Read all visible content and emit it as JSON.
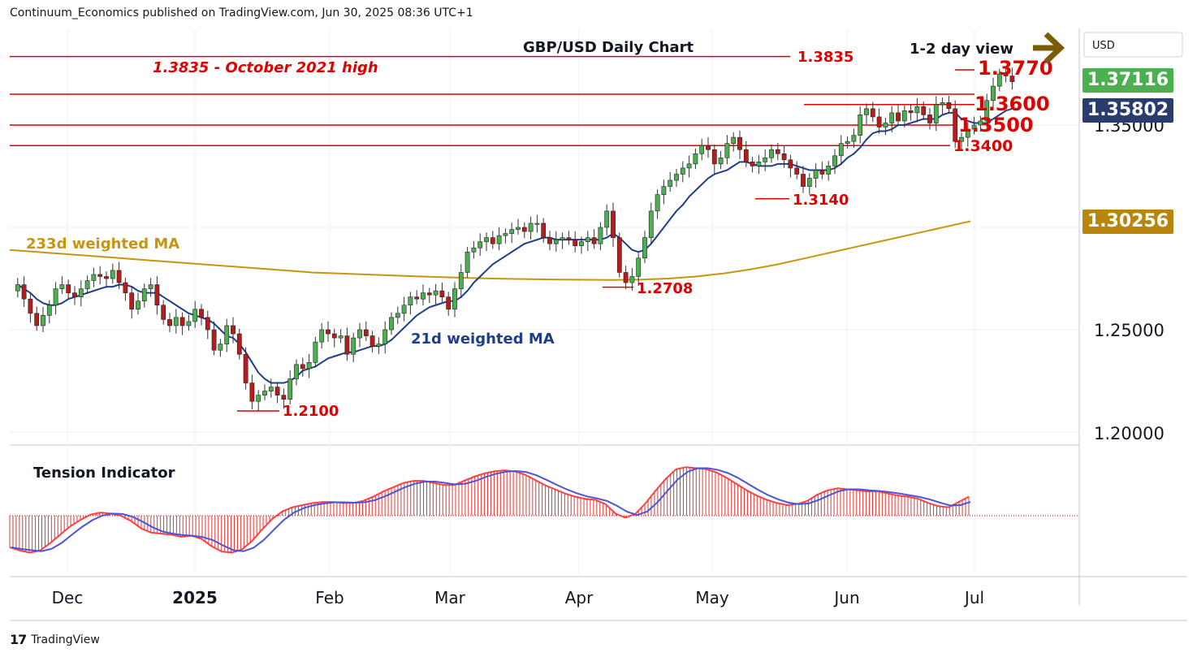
{
  "header": {
    "publisher_line": "Continuum_Economics published on TradingView.com, Jun 30, 2025 08:36 UTC+1"
  },
  "footer": {
    "brand": "TradingView"
  },
  "colors": {
    "bull": "#4caf50",
    "bear": "#b71c1c",
    "level": "#e00000",
    "ma21": "#1f3e8a",
    "ma233": "#c8950f",
    "annotation_red": "#e00000",
    "arrow": "#7a5c0a",
    "badge_green": "#4caf50",
    "badge_navy": "#2a3b6e",
    "badge_gold": "#b8860b"
  },
  "chart_data": {
    "type": "candlestick",
    "title": "GBP/USD Daily Chart",
    "subtitle": "1-2 day view",
    "currency": "USD",
    "y_ticks": [
      "1.35000",
      "1.25000",
      "1.20000"
    ],
    "x_ticks": [
      "Dec",
      "2025",
      "Feb",
      "Mar",
      "Apr",
      "May",
      "Jun",
      "Jul"
    ],
    "price_badges": [
      {
        "label": "1.37116",
        "kind": "last",
        "value": 1.37116
      },
      {
        "label": "1.35802",
        "kind": "ma21",
        "value": 1.35802
      },
      {
        "label": "1.30256",
        "kind": "ma233",
        "value": 1.30256
      }
    ],
    "levels": [
      {
        "value": 1.3835,
        "label": "1.3835",
        "note": "1.3835 - October 2021 high"
      },
      {
        "value": 1.377,
        "label": "1.3770"
      },
      {
        "value": 1.36,
        "label": "1.3600"
      },
      {
        "value": 1.35,
        "label": "1.3500"
      },
      {
        "value": 1.34,
        "label": "1.3400"
      }
    ],
    "swing_labels": [
      {
        "value": 1.314,
        "label": "1.3140"
      },
      {
        "value": 1.2708,
        "label": "1.2708"
      },
      {
        "value": 1.21,
        "label": "1.2100"
      }
    ],
    "ma_labels": {
      "ma233": "233d weighted MA",
      "ma21": "21d weighted MA"
    },
    "indicator": {
      "name": "Tension Indicator"
    },
    "price_path": [
      1.269,
      1.272,
      1.265,
      1.258,
      1.252,
      1.257,
      1.262,
      1.27,
      1.272,
      1.268,
      1.266,
      1.27,
      1.274,
      1.277,
      1.276,
      1.275,
      1.279,
      1.273,
      1.268,
      1.26,
      1.264,
      1.27,
      1.272,
      1.262,
      1.255,
      1.252,
      1.256,
      1.252,
      1.254,
      1.26,
      1.256,
      1.25,
      1.24,
      1.243,
      1.252,
      1.248,
      1.238,
      1.224,
      1.215,
      1.218,
      1.22,
      1.222,
      1.218,
      1.216,
      1.226,
      1.233,
      1.231,
      1.234,
      1.244,
      1.25,
      1.248,
      1.246,
      1.247,
      1.238,
      1.246,
      1.25,
      1.247,
      1.242,
      1.243,
      1.25,
      1.256,
      1.258,
      1.262,
      1.266,
      1.265,
      1.268,
      1.267,
      1.269,
      1.266,
      1.26,
      1.27,
      1.278,
      1.288,
      1.29,
      1.293,
      1.295,
      1.292,
      1.296,
      1.297,
      1.299,
      1.3,
      1.298,
      1.302,
      1.302,
      1.295,
      1.292,
      1.294,
      1.295,
      1.294,
      1.291,
      1.293,
      1.295,
      1.292,
      1.3,
      1.308,
      1.295,
      1.278,
      1.273,
      1.276,
      1.285,
      1.295,
      1.308,
      1.316,
      1.32,
      1.323,
      1.326,
      1.329,
      1.331,
      1.336,
      1.34,
      1.338,
      1.331,
      1.334,
      1.341,
      1.344,
      1.338,
      1.332,
      1.33,
      1.332,
      1.334,
      1.338,
      1.336,
      1.333,
      1.329,
      1.326,
      1.32,
      1.324,
      1.328,
      1.326,
      1.33,
      1.335,
      1.341,
      1.342,
      1.345,
      1.355,
      1.358,
      1.354,
      1.349,
      1.351,
      1.356,
      1.352,
      1.357,
      1.356,
      1.359,
      1.355,
      1.351,
      1.36,
      1.361,
      1.358,
      1.342,
      1.344,
      1.348,
      1.35,
      1.352,
      1.362,
      1.369,
      1.375,
      1.374,
      1.3712
    ],
    "ma21_path": [
      1.272,
      1.27,
      1.268,
      1.265,
      1.263,
      1.262,
      1.262,
      1.263,
      1.265,
      1.266,
      1.267,
      1.268,
      1.269,
      1.27,
      1.271,
      1.271,
      1.272,
      1.272,
      1.271,
      1.269,
      1.268,
      1.268,
      1.268,
      1.266,
      1.264,
      1.262,
      1.26,
      1.258,
      1.257,
      1.256,
      1.255,
      1.253,
      1.25,
      1.247,
      1.246,
      1.243,
      1.239,
      1.234,
      1.229,
      1.226,
      1.224,
      1.224,
      1.224,
      1.225,
      1.227,
      1.23,
      1.231,
      1.232,
      1.234,
      1.236,
      1.237,
      1.238,
      1.239,
      1.239,
      1.24,
      1.241,
      1.242,
      1.242,
      1.243,
      1.245,
      1.248,
      1.251,
      1.254,
      1.257,
      1.259,
      1.261,
      1.262,
      1.263,
      1.264,
      1.264,
      1.266,
      1.269,
      1.273,
      1.276,
      1.279,
      1.282,
      1.284,
      1.286,
      1.288,
      1.29,
      1.292,
      1.293,
      1.294,
      1.295,
      1.295,
      1.294,
      1.294,
      1.294,
      1.294,
      1.294,
      1.294,
      1.294,
      1.294,
      1.295,
      1.297,
      1.295,
      1.292,
      1.289,
      1.288,
      1.289,
      1.292,
      1.296,
      1.3,
      1.304,
      1.308,
      1.311,
      1.315,
      1.318,
      1.321,
      1.324,
      1.326,
      1.327,
      1.328,
      1.33,
      1.332,
      1.332,
      1.331,
      1.33,
      1.33,
      1.33,
      1.331,
      1.331,
      1.331,
      1.33,
      1.329,
      1.328,
      1.328,
      1.328,
      1.328,
      1.329,
      1.331,
      1.334,
      1.336,
      1.339,
      1.343,
      1.346,
      1.347,
      1.347,
      1.348,
      1.35,
      1.35,
      1.351,
      1.352,
      1.353,
      1.353,
      1.353,
      1.355,
      1.356,
      1.356,
      1.353,
      1.352,
      1.351,
      1.351,
      1.351,
      1.353,
      1.355,
      1.357,
      1.358,
      1.358
    ],
    "ma233_path": [
      1.289,
      1.288,
      1.287,
      1.286,
      1.285,
      1.284,
      1.283,
      1.282,
      1.281,
      1.28,
      1.279,
      1.278,
      1.2775,
      1.277,
      1.2765,
      1.276,
      1.2756,
      1.2752,
      1.2749,
      1.2747,
      1.2745,
      1.2744,
      1.2743,
      1.2745,
      1.275,
      1.276,
      1.2775,
      1.2795,
      1.282,
      1.285,
      1.288,
      1.291,
      1.294,
      1.297,
      1.3,
      1.303
    ],
    "tension_path": [
      -3.0,
      -3.3,
      -3.5,
      -3.3,
      -2.6,
      -1.8,
      -1.0,
      -0.4,
      0.1,
      0.3,
      0.2,
      0.0,
      -0.5,
      -1.2,
      -1.6,
      -1.7,
      -1.8,
      -2.0,
      -1.9,
      -2.2,
      -2.9,
      -3.4,
      -3.5,
      -3.2,
      -2.4,
      -1.3,
      -0.3,
      0.4,
      0.8,
      1.0,
      1.2,
      1.3,
      1.3,
      1.2,
      1.2,
      1.4,
      1.8,
      2.3,
      2.7,
      3.1,
      3.3,
      3.3,
      3.1,
      2.9,
      2.9,
      3.3,
      3.7,
      4.0,
      4.2,
      4.3,
      4.2,
      3.9,
      3.4,
      2.9,
      2.5,
      2.1,
      1.8,
      1.6,
      1.5,
      1.1,
      0.2,
      -0.2,
      0.2,
      1.2,
      2.4,
      3.5,
      4.4,
      4.6,
      4.5,
      4.4,
      4.1,
      3.6,
      3.0,
      2.4,
      1.9,
      1.5,
      1.2,
      1.0,
      1.1,
      1.4,
      2.0,
      2.4,
      2.6,
      2.5,
      2.4,
      2.3,
      2.3,
      2.1,
      1.9,
      1.8,
      1.6,
      1.2,
      0.9,
      0.8,
      1.3,
      1.8
    ]
  }
}
